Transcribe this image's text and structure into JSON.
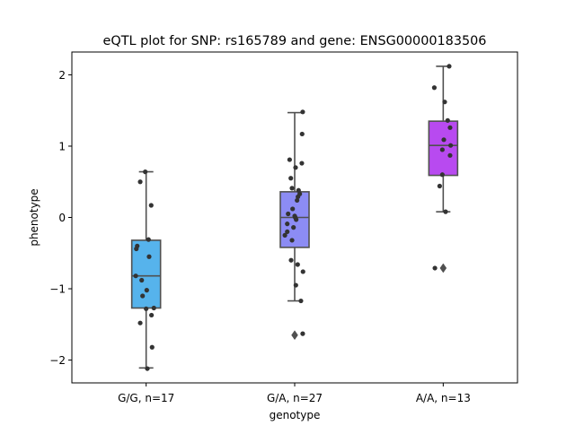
{
  "chart_data": {
    "type": "box",
    "title": "eQTL plot for SNP: rs165789 and gene: ENSG00000183506",
    "xlabel": "genotype",
    "ylabel": "phenotype",
    "ylim": [
      -2.32,
      2.32
    ],
    "yticks": [
      -2,
      -1,
      0,
      1,
      2
    ],
    "ytick_labels": [
      "−2",
      "−1",
      "0",
      "1",
      "2"
    ],
    "categories": [
      "G/G, n=17",
      "G/A, n=27",
      "A/A, n=13"
    ],
    "colors": [
      "#56b3ec",
      "#8c8cf4",
      "#b84af0"
    ],
    "boxes": [
      {
        "q1": -1.27,
        "median": -0.82,
        "q3": -0.32,
        "whisker_low": -2.11,
        "whisker_high": 0.64,
        "outliers": []
      },
      {
        "q1": -0.42,
        "median": 0.0,
        "q3": 0.36,
        "whisker_low": -1.17,
        "whisker_high": 1.47,
        "outliers": [
          -1.65
        ]
      },
      {
        "q1": 0.59,
        "median": 1.01,
        "q3": 1.35,
        "whisker_low": 0.08,
        "whisker_high": 2.12,
        "outliers": [
          -0.71
        ]
      }
    ],
    "points": [
      [
        -2.12,
        -1.82,
        -1.48,
        -1.37,
        -1.27,
        -1.1,
        -1.02,
        -0.88,
        -0.82,
        -0.55,
        -0.44,
        -0.4,
        -0.31,
        0.17,
        0.5,
        0.64,
        -1.28
      ],
      [
        -1.63,
        -1.17,
        -0.95,
        -0.76,
        -0.66,
        -0.6,
        -0.32,
        -0.25,
        -0.2,
        -0.14,
        -0.09,
        -0.03,
        0.0,
        0.05,
        0.12,
        0.24,
        0.29,
        0.33,
        0.38,
        0.41,
        0.55,
        0.7,
        0.76,
        0.81,
        1.17,
        1.48,
        0.02
      ],
      [
        -0.71,
        0.08,
        0.44,
        0.6,
        0.87,
        0.95,
        1.01,
        1.09,
        1.26,
        1.36,
        1.62,
        1.82,
        2.12
      ]
    ],
    "jitter": [
      [
        0.04,
        0.2,
        -0.2,
        0.18,
        0.26,
        -0.12,
        0.02,
        -0.15,
        -0.35,
        0.1,
        -0.33,
        -0.3,
        0.08,
        0.17,
        -0.2,
        -0.03,
        0.0
      ],
      [
        0.27,
        0.21,
        0.04,
        0.28,
        0.1,
        -0.12,
        -0.09,
        -0.33,
        -0.25,
        -0.04,
        -0.25,
        0.05,
        0.02,
        -0.22,
        -0.07,
        0.08,
        0.11,
        0.17,
        0.13,
        -0.09,
        -0.13,
        0.03,
        0.24,
        -0.17,
        0.25,
        0.27,
        0.0
      ],
      [
        -0.28,
        0.08,
        -0.12,
        -0.03,
        0.23,
        -0.03,
        0.25,
        0.02,
        0.23,
        0.15,
        0.05,
        -0.3,
        0.2
      ]
    ],
    "box_line_color": "#505050",
    "point_color": "#333333",
    "grid": false,
    "legend": "none"
  }
}
